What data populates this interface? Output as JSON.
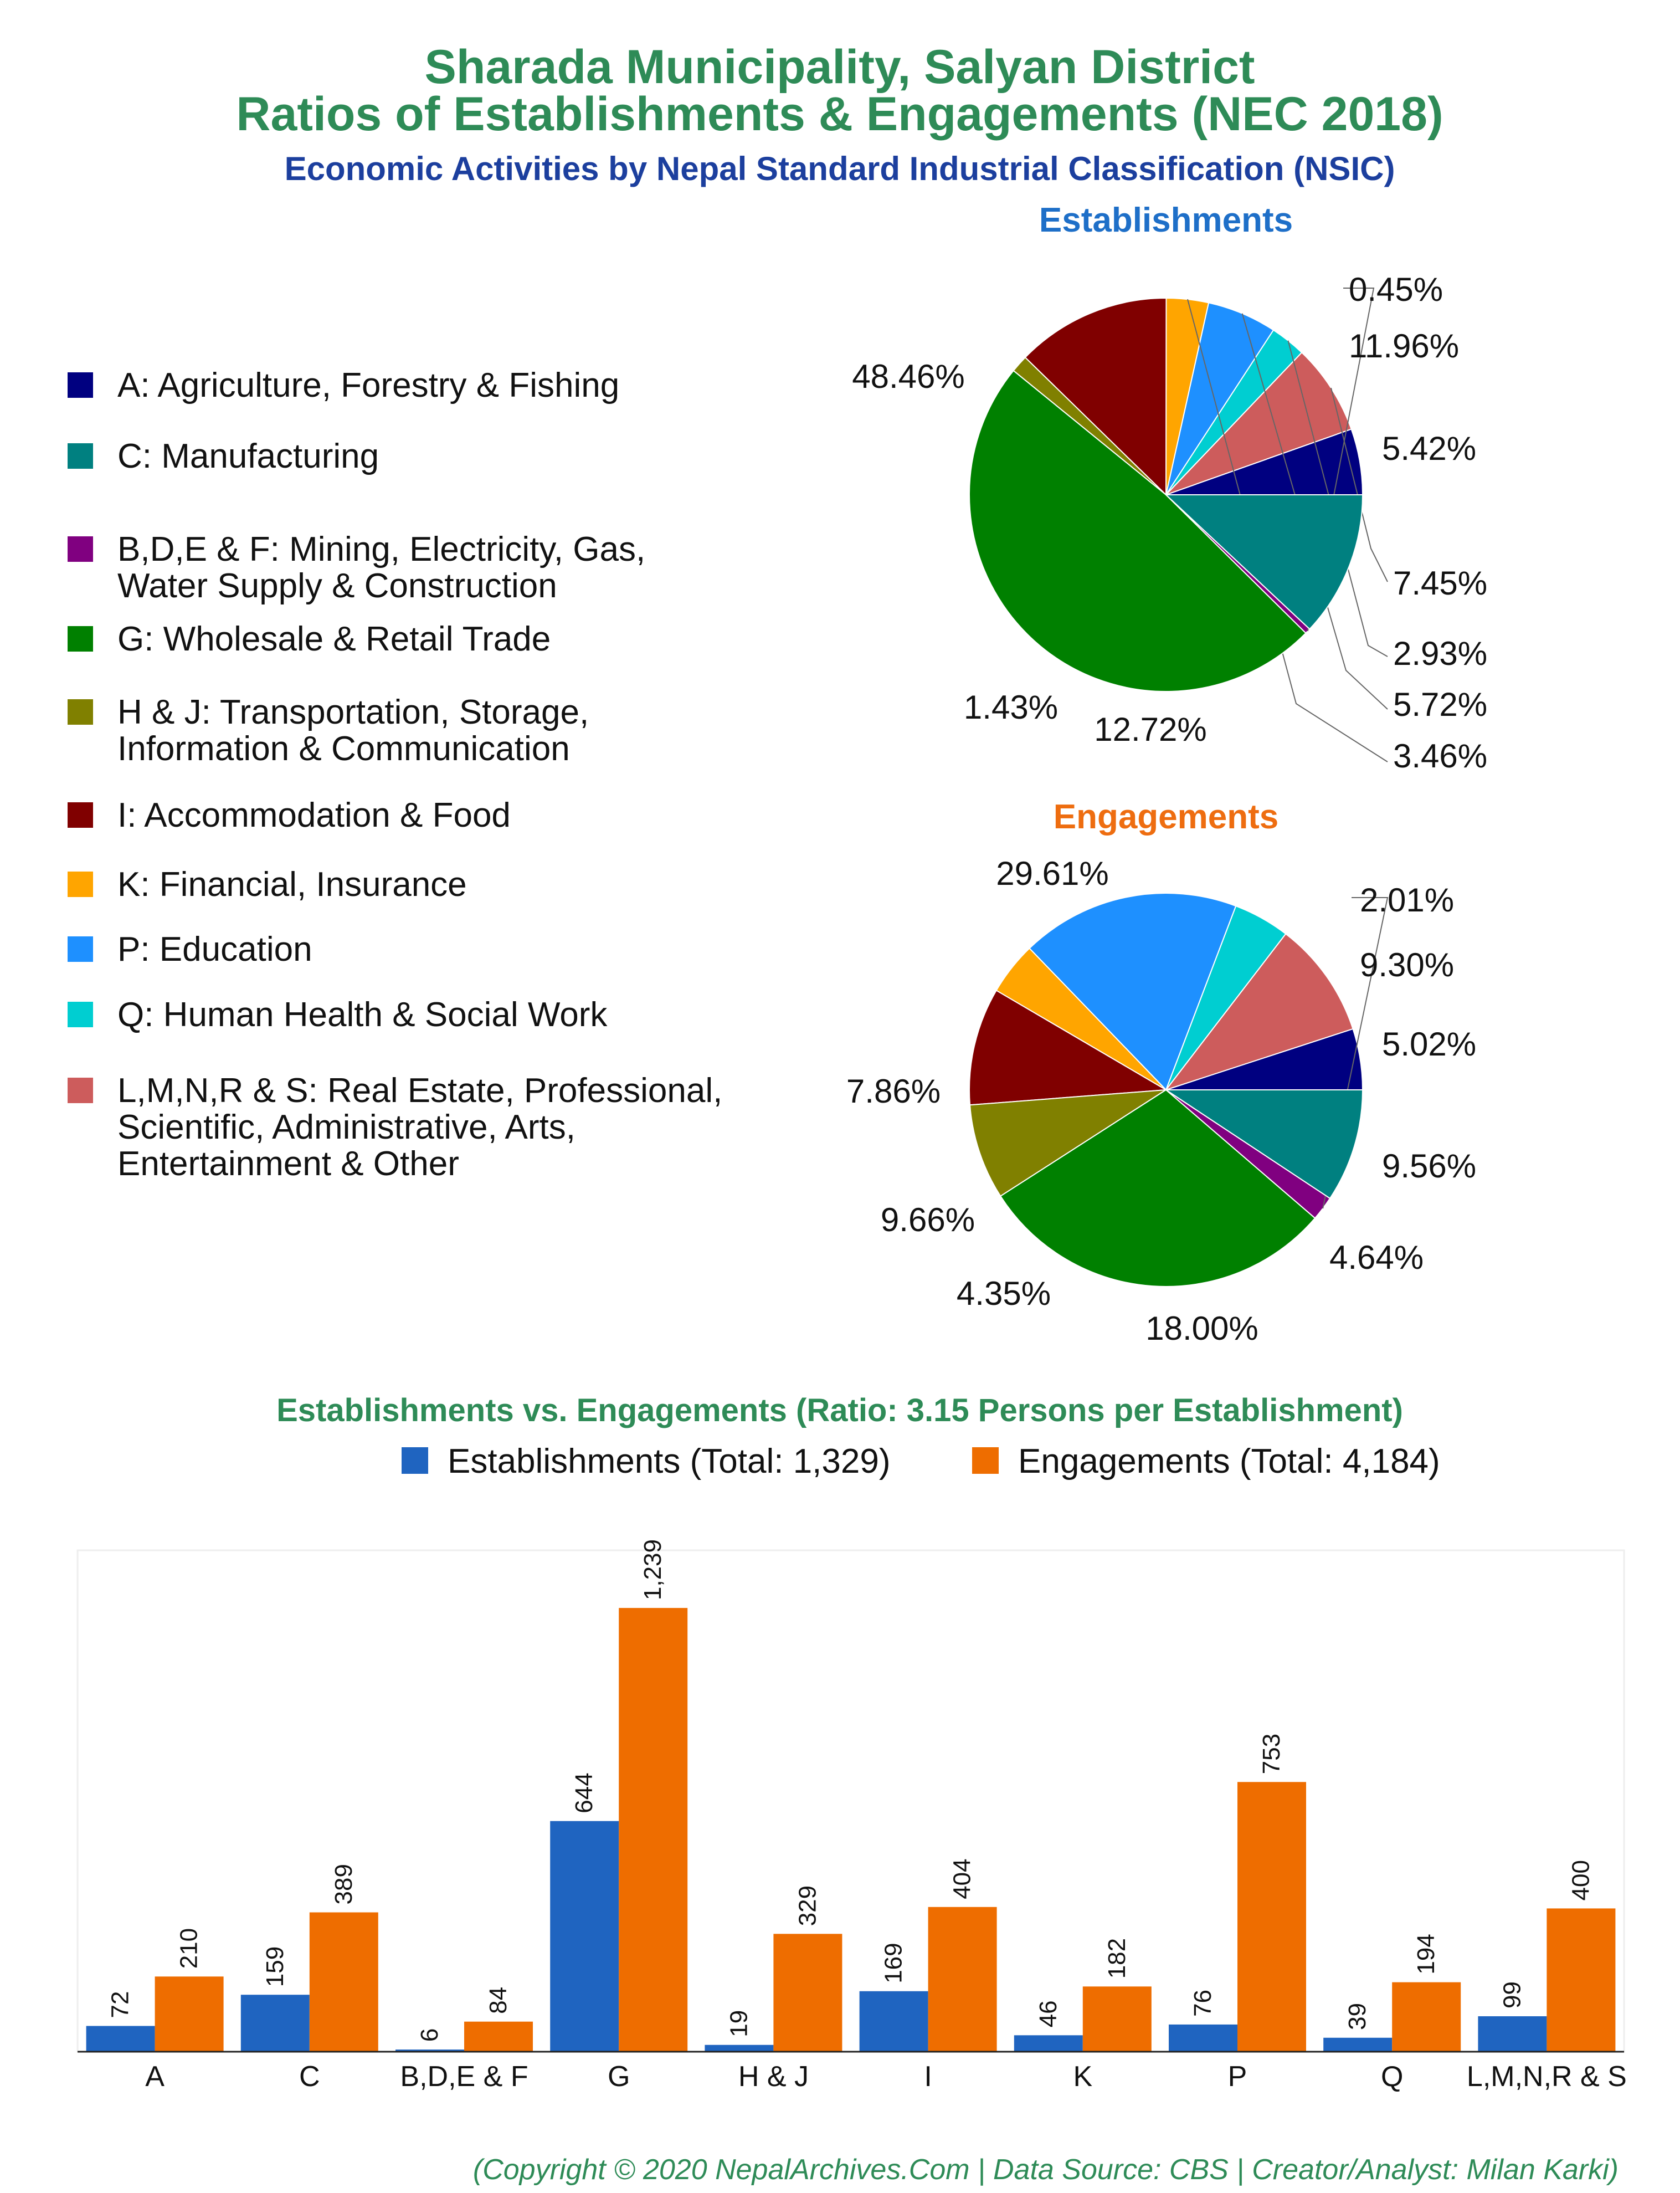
{
  "title_line1": "Sharada Municipality, Salyan District",
  "title_line2": "Ratios of Establishments & Engagements (NEC 2018)",
  "subtitle": "Economic Activities by Nepal Standard Industrial Classification (NSIC)",
  "footer": "(Copyright © 2020 NepalArchives.Com | Data Source: CBS | Creator/Analyst: Milan Karki)",
  "legend": [
    {
      "lines": [
        "A: Agriculture, Forestry & Fishing"
      ],
      "color": "#000080"
    },
    {
      "lines": [
        "C: Manufacturing"
      ],
      "color": "#008080"
    },
    {
      "lines": [
        "B,D,E & F: Mining, Electricity, Gas,",
        "Water Supply & Construction"
      ],
      "color": "#800080"
    },
    {
      "lines": [
        "G: Wholesale & Retail Trade"
      ],
      "color": "#008000"
    },
    {
      "lines": [
        "H & J: Transportation, Storage,",
        "Information & Communication"
      ],
      "color": "#808000"
    },
    {
      "lines": [
        "I: Accommodation & Food"
      ],
      "color": "#800000"
    },
    {
      "lines": [
        "K: Financial, Insurance"
      ],
      "color": "#ffa500"
    },
    {
      "lines": [
        "P: Education"
      ],
      "color": "#1e90ff"
    },
    {
      "lines": [
        "Q: Human Health & Social Work"
      ],
      "color": "#00ced1"
    },
    {
      "lines": [
        "L,M,N,R & S: Real Estate, Professional,",
        "Scientific, Administrative, Arts,",
        "Entertainment & Other"
      ],
      "color": "#cd5c5c"
    }
  ],
  "chart_data": [
    {
      "type": "pie",
      "title": "Establishments",
      "slices": [
        {
          "code": "A",
          "value": 5.42,
          "label": "5.42%"
        },
        {
          "code": "L,M,N,R & S",
          "value": 7.45,
          "label": "7.45%"
        },
        {
          "code": "Q",
          "value": 2.93,
          "label": "2.93%"
        },
        {
          "code": "P",
          "value": 5.72,
          "label": "5.72%"
        },
        {
          "code": "K",
          "value": 3.46,
          "label": "3.46%"
        },
        {
          "code": "I",
          "value": 12.72,
          "label": "12.72%"
        },
        {
          "code": "H & J",
          "value": 1.43,
          "label": "1.43%"
        },
        {
          "code": "G",
          "value": 48.46,
          "label": "48.46%"
        },
        {
          "code": "B,D,E & F",
          "value": 0.45,
          "label": "0.45%"
        },
        {
          "code": "C",
          "value": 11.96,
          "label": "11.96%"
        }
      ]
    },
    {
      "type": "pie",
      "title": "Engagements",
      "slices": [
        {
          "code": "A",
          "value": 5.02,
          "label": "5.02%"
        },
        {
          "code": "L,M,N,R & S",
          "value": 9.56,
          "label": "9.56%"
        },
        {
          "code": "Q",
          "value": 4.64,
          "label": "4.64%"
        },
        {
          "code": "P",
          "value": 18.0,
          "label": "18.00%"
        },
        {
          "code": "K",
          "value": 4.35,
          "label": "4.35%"
        },
        {
          "code": "I",
          "value": 9.66,
          "label": "9.66%"
        },
        {
          "code": "H & J",
          "value": 7.86,
          "label": "7.86%"
        },
        {
          "code": "G",
          "value": 29.61,
          "label": "29.61%"
        },
        {
          "code": "B,D,E & F",
          "value": 2.01,
          "label": "2.01%"
        },
        {
          "code": "C",
          "value": 9.3,
          "label": "9.30%"
        }
      ]
    },
    {
      "type": "bar",
      "title": "Establishments vs. Engagements (Ratio: 3.15 Persons per Establishment)",
      "categories": [
        "A",
        "C",
        "B,D,E & F",
        "G",
        "H & J",
        "I",
        "K",
        "P",
        "Q",
        "L,M,N,R & S"
      ],
      "series": [
        {
          "name": "Establishments (Total: 1,329)",
          "color": "#1f64c0",
          "values": [
            72,
            159,
            6,
            644,
            19,
            169,
            46,
            76,
            39,
            99
          ],
          "labels": [
            "72",
            "159",
            "6",
            "644",
            "19",
            "169",
            "46",
            "76",
            "39",
            "99"
          ]
        },
        {
          "name": "Engagements (Total: 4,184)",
          "color": "#ee6d00",
          "values": [
            210,
            389,
            84,
            1239,
            329,
            404,
            182,
            753,
            194,
            400
          ],
          "labels": [
            "210",
            "389",
            "84",
            "1,239",
            "329",
            "404",
            "182",
            "753",
            "194",
            "400"
          ]
        }
      ],
      "ylim": [
        0,
        1400
      ],
      "grid": false,
      "legend_position": "top"
    }
  ]
}
